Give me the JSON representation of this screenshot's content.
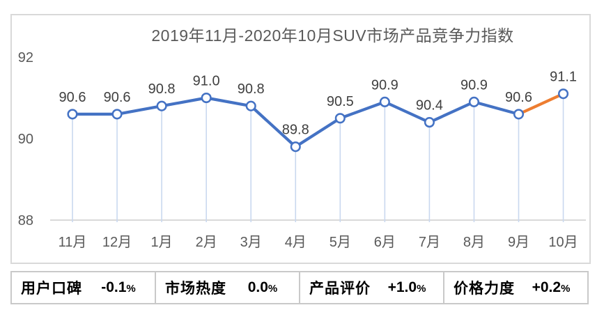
{
  "chart_data": {
    "type": "line",
    "title": "2019年11月-2020年10月SUV市场产品竞争力指数",
    "categories": [
      "11月",
      "12月",
      "1月",
      "2月",
      "3月",
      "4月",
      "5月",
      "6月",
      "7月",
      "8月",
      "9月",
      "10月"
    ],
    "values": [
      90.6,
      90.6,
      90.8,
      91.0,
      90.8,
      89.8,
      90.5,
      90.9,
      90.4,
      90.9,
      90.6,
      91.1
    ],
    "point_labels": [
      "90.6",
      "90.6",
      "90.8",
      "91.0",
      "90.8",
      "89.8",
      "90.5",
      "90.9",
      "90.4",
      "90.9",
      "90.6",
      "91.1"
    ],
    "xlabel": "",
    "ylabel": "",
    "ylim": [
      88,
      92
    ],
    "yticks": [
      88,
      90,
      92
    ],
    "ytick_labels": [
      "88",
      "90",
      "92"
    ],
    "grid": false,
    "legend_position": "none",
    "line_color": "#4472C4",
    "highlight_segment": {
      "from_index": 10,
      "to_index": 11,
      "color": "#ED7D31"
    },
    "drop_line_color": "#C9D8EF",
    "marker_fill": "#FDFEFF",
    "marker_stroke": "#4472C4",
    "axis_line_color": "#D9D9D9",
    "tick_label_color": "#595959",
    "point_label_color": "#3F3F3F",
    "title_color": "#595959"
  },
  "metrics": {
    "items": [
      {
        "label": "用户口碑",
        "value": "-0.1",
        "unit": "%"
      },
      {
        "label": "市场热度",
        "value": "0.0",
        "unit": "%"
      },
      {
        "label": "产品评价",
        "value": "+1.0",
        "unit": "%"
      },
      {
        "label": "价格力度",
        "value": "+0.2",
        "unit": "%"
      }
    ]
  }
}
